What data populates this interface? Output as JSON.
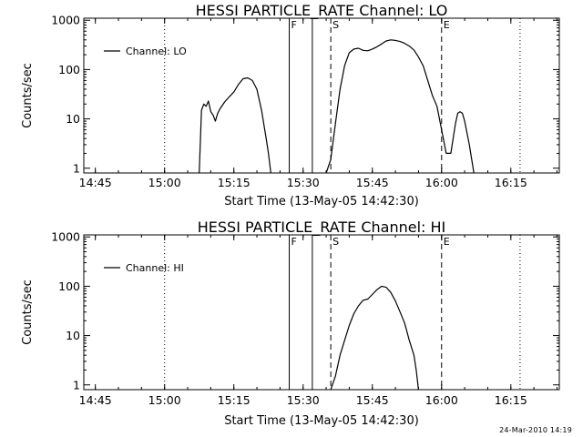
{
  "chart_data": [
    {
      "type": "line",
      "title": "HESSI PARTICLE_RATE Channel: LO",
      "xlabel": "Start Time (13-May-05 14:42:30)",
      "ylabel": "Counts/sec",
      "y_scale": "log",
      "xlim": [
        "14:42:30",
        "16:25:30"
      ],
      "ylim": [
        0.8,
        1100
      ],
      "x_tick_labels": [
        "14:45",
        "15:00",
        "15:15",
        "15:30",
        "15:45",
        "16:00",
        "16:15"
      ],
      "y_tick_labels": [
        "1",
        "10",
        "100",
        "1000"
      ],
      "legend": {
        "entries": [
          "Channel: LO"
        ],
        "position": "top-left"
      },
      "vertical_lines": [
        {
          "x": "15:00",
          "style": "dotted",
          "label": ""
        },
        {
          "x": "15:27",
          "style": "solid",
          "label": "F"
        },
        {
          "x": "15:32",
          "style": "solid",
          "label": ""
        },
        {
          "x": "15:36",
          "style": "dashed",
          "label": "S"
        },
        {
          "x": "16:00",
          "style": "dashed",
          "label": "E"
        },
        {
          "x": "16:17",
          "style": "dotted",
          "label": ""
        }
      ],
      "series": [
        {
          "name": "Channel: LO",
          "segments": [
            [
              [
                "15:07:30",
                0.8
              ],
              [
                "15:08:00",
                15
              ],
              [
                "15:08:30",
                20
              ],
              [
                "15:09:00",
                18
              ],
              [
                "15:09:30",
                23
              ],
              [
                "15:10:00",
                14
              ],
              [
                "15:10:30",
                12
              ],
              [
                "15:11:00",
                9
              ],
              [
                "15:11:30",
                13
              ],
              [
                "15:12:00",
                16
              ],
              [
                "15:13:00",
                22
              ],
              [
                "15:14:00",
                28
              ],
              [
                "15:15:00",
                35
              ],
              [
                "15:16:00",
                50
              ],
              [
                "15:17:00",
                65
              ],
              [
                "15:18:00",
                68
              ],
              [
                "15:19:00",
                60
              ],
              [
                "15:20:00",
                40
              ],
              [
                "15:21:00",
                15
              ],
              [
                "15:22:00",
                4
              ],
              [
                "15:22:30",
                2
              ],
              [
                "15:23:00",
                0.8
              ]
            ],
            [
              [
                "15:35:00",
                0.8
              ],
              [
                "15:36:00",
                1.5
              ],
              [
                "15:37:00",
                8
              ],
              [
                "15:38:00",
                40
              ],
              [
                "15:39:00",
                120
              ],
              [
                "15:40:00",
                220
              ],
              [
                "15:41:00",
                260
              ],
              [
                "15:42:00",
                270
              ],
              [
                "15:43:00",
                245
              ],
              [
                "15:44:00",
                240
              ],
              [
                "15:45:00",
                260
              ],
              [
                "15:46:00",
                290
              ],
              [
                "15:47:00",
                330
              ],
              [
                "15:48:00",
                380
              ],
              [
                "15:49:00",
                400
              ],
              [
                "15:50:00",
                390
              ],
              [
                "15:51:00",
                370
              ],
              [
                "15:52:00",
                340
              ],
              [
                "15:53:00",
                300
              ],
              [
                "15:54:00",
                250
              ],
              [
                "15:55:00",
                180
              ],
              [
                "15:56:00",
                120
              ],
              [
                "15:57:00",
                60
              ],
              [
                "15:58:00",
                30
              ],
              [
                "15:59:00",
                18
              ],
              [
                "16:00:00",
                6
              ],
              [
                "16:01:00",
                2
              ],
              [
                "16:02:00",
                2
              ],
              [
                "16:03:00",
                8
              ],
              [
                "16:03:30",
                13
              ],
              [
                "16:04:00",
                14
              ],
              [
                "16:04:30",
                13
              ],
              [
                "16:05:00",
                9
              ],
              [
                "16:06:00",
                3
              ],
              [
                "16:07:00",
                0.8
              ]
            ]
          ]
        }
      ]
    },
    {
      "type": "line",
      "title": "HESSI PARTICLE_RATE Channel: HI",
      "xlabel": "Start Time (13-May-05 14:42:30)",
      "ylabel": "Counts/sec",
      "y_scale": "log",
      "xlim": [
        "14:42:30",
        "16:25:30"
      ],
      "ylim": [
        0.8,
        1100
      ],
      "x_tick_labels": [
        "14:45",
        "15:00",
        "15:15",
        "15:30",
        "15:45",
        "16:00",
        "16:15"
      ],
      "y_tick_labels": [
        "1",
        "10",
        "100",
        "1000"
      ],
      "legend": {
        "entries": [
          "Channel: HI"
        ],
        "position": "top-left"
      },
      "vertical_lines": [
        {
          "x": "15:00",
          "style": "dotted",
          "label": ""
        },
        {
          "x": "15:27",
          "style": "solid",
          "label": "F"
        },
        {
          "x": "15:32",
          "style": "solid",
          "label": ""
        },
        {
          "x": "15:36",
          "style": "dashed",
          "label": "S"
        },
        {
          "x": "16:00",
          "style": "dashed",
          "label": "E"
        },
        {
          "x": "16:17",
          "style": "dotted",
          "label": ""
        }
      ],
      "series": [
        {
          "name": "Channel: HI",
          "segments": [
            [
              [
                "15:36:00",
                0.8
              ],
              [
                "15:37:00",
                1.5
              ],
              [
                "15:38:00",
                4
              ],
              [
                "15:39:00",
                8
              ],
              [
                "15:40:00",
                16
              ],
              [
                "15:41:00",
                28
              ],
              [
                "15:42:00",
                40
              ],
              [
                "15:43:00",
                52
              ],
              [
                "15:44:00",
                55
              ],
              [
                "15:45:00",
                68
              ],
              [
                "15:46:00",
                85
              ],
              [
                "15:47:00",
                100
              ],
              [
                "15:48:00",
                95
              ],
              [
                "15:49:00",
                75
              ],
              [
                "15:50:00",
                50
              ],
              [
                "15:51:00",
                30
              ],
              [
                "15:52:00",
                18
              ],
              [
                "15:53:00",
                8
              ],
              [
                "15:54:00",
                4
              ],
              [
                "15:54:30",
                2
              ],
              [
                "15:55:00",
                0.8
              ]
            ]
          ]
        }
      ]
    }
  ],
  "footer": {
    "timestamp": "24-Mar-2010 14:19"
  }
}
